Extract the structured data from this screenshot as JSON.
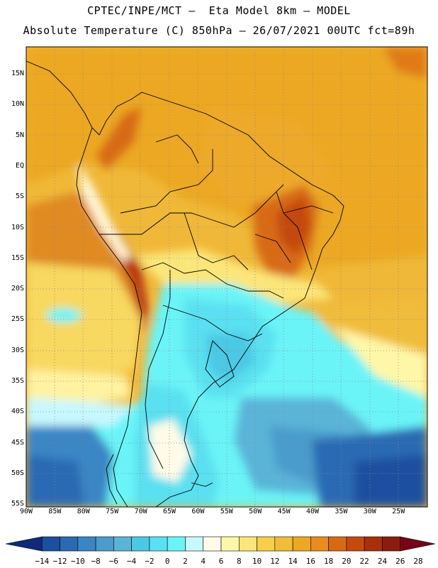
{
  "header": {
    "line1": "CPTEC/INPE/MCT –  Eta Model 8km – MODEL",
    "line2": "Absolute Temperature (C) 850hPa – 26/07/2021 00UTC fct=89h"
  },
  "map": {
    "lat_labels": [
      "15N",
      "10N",
      "5N",
      "EQ",
      "5S",
      "10S",
      "15S",
      "20S",
      "25S",
      "30S",
      "35S",
      "40S",
      "45S",
      "50S",
      "55S"
    ],
    "lon_labels": [
      "90W",
      "85W",
      "80W",
      "75W",
      "70W",
      "65W",
      "60W",
      "55W",
      "50W",
      "45W",
      "40W",
      "35W",
      "30W",
      "25W"
    ],
    "grid": "dotted",
    "lon_range": [
      -90,
      -20
    ],
    "lat_range": [
      -55,
      20
    ]
  },
  "colorbar": {
    "labels": [
      "-14",
      "-12",
      "-10",
      "-8",
      "-6",
      "-4",
      "-2",
      "0",
      "2",
      "4",
      "6",
      "8",
      "10",
      "12",
      "14",
      "16",
      "18",
      "20",
      "22",
      "24",
      "26",
      "28"
    ],
    "colors": [
      "#102a7a",
      "#1d4fa0",
      "#2a6ab4",
      "#3a86c4",
      "#4a9ccc",
      "#5ab4d8",
      "#4cc8e4",
      "#5ae0f0",
      "#6af4f8",
      "#c8f8ff",
      "#fffbe8",
      "#fff7a8",
      "#fce67a",
      "#f8cf4a",
      "#f0bc3a",
      "#eca822",
      "#e88c1e",
      "#d86a12",
      "#c44a0c",
      "#a83008",
      "#8c1c10",
      "#780418"
    ]
  }
}
